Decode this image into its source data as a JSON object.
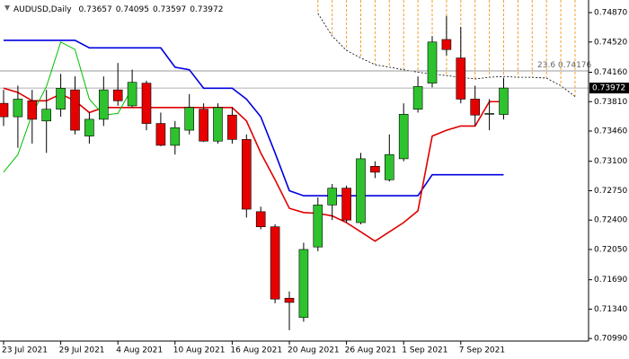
{
  "chart_data": {
    "type": "candlestick",
    "title": "AUDUSD,Daily",
    "categories": [
      "23 Jul 2021",
      null,
      null,
      null,
      "29 Jul 2021",
      null,
      null,
      null,
      "4 Aug 2021",
      null,
      null,
      null,
      "10 Aug 2021",
      null,
      null,
      null,
      "16 Aug 2021",
      null,
      null,
      null,
      "20 Aug 2021",
      null,
      null,
      null,
      "26 Aug 2021",
      null,
      null,
      null,
      "1 Sep 2021",
      null,
      null,
      null,
      "7 Sep 2021",
      null,
      null,
      null,
      null,
      null,
      null,
      null,
      null
    ],
    "open": [
      0.7379,
      0.7363,
      0.7382,
      0.7358,
      0.7372,
      0.7395,
      0.734,
      0.736,
      0.7395,
      0.7376,
      0.7403,
      0.7355,
      0.7329,
      0.7347,
      0.7372,
      0.7334,
      0.7365,
      0.7336,
      0.725,
      0.7232,
      0.7147,
      0.7124,
      0.7208,
      0.7258,
      0.7278,
      0.7237,
      0.7304,
      0.7288,
      0.7313,
      0.7372,
      0.7403,
      0.7455,
      0.7433,
      0.7384,
      0.7366,
      0.73657,
      null,
      null,
      null,
      null,
      null
    ],
    "high": [
      0.7395,
      0.74,
      0.7395,
      0.7395,
      0.7414,
      0.7411,
      0.7368,
      0.7411,
      0.7427,
      0.7419,
      0.7406,
      0.7368,
      0.7358,
      0.739,
      0.7379,
      0.7379,
      0.7374,
      0.7342,
      0.7256,
      0.7235,
      0.7155,
      0.7213,
      0.7267,
      0.7283,
      0.7281,
      0.732,
      0.731,
      0.7342,
      0.7379,
      0.7411,
      0.7459,
      0.7483,
      0.747,
      0.74,
      0.7384,
      0.74095,
      null,
      null,
      null,
      null,
      null
    ],
    "low": [
      0.7352,
      0.7326,
      0.7331,
      0.732,
      0.7363,
      0.7342,
      0.7331,
      0.7352,
      0.7376,
      0.7374,
      0.7347,
      0.7328,
      0.7318,
      0.7342,
      0.7333,
      0.7331,
      0.7331,
      0.7243,
      0.7229,
      0.7141,
      0.7109,
      0.7119,
      0.7203,
      0.724,
      0.7237,
      0.7235,
      0.729,
      0.7286,
      0.731,
      0.7368,
      0.7398,
      0.7436,
      0.7379,
      0.7352,
      0.7347,
      0.73597,
      null,
      null,
      null,
      null,
      null
    ],
    "close": [
      0.7363,
      0.7384,
      0.736,
      0.7372,
      0.7397,
      0.7347,
      0.736,
      0.7395,
      0.7382,
      0.7404,
      0.7355,
      0.7329,
      0.735,
      0.7374,
      0.7334,
      0.7374,
      0.7336,
      0.7253,
      0.7232,
      0.7146,
      0.7142,
      0.7205,
      0.7258,
      0.7278,
      0.724,
      0.7313,
      0.7297,
      0.7318,
      0.7366,
      0.7399,
      0.7452,
      0.7443,
      0.7384,
      0.7365,
      0.7367,
      0.73972,
      null,
      null,
      null,
      null,
      null
    ],
    "up_color": "#2ec32e",
    "down_color": "#e60000",
    "series": [
      {
        "color": "#0000e0",
        "width": 1.6,
        "values": [
          0.7454,
          0.7454,
          0.7454,
          0.7454,
          0.7454,
          0.7454,
          0.7445,
          0.7445,
          0.7445,
          0.7445,
          0.7445,
          0.7445,
          0.7422,
          0.7419,
          0.7397,
          0.7397,
          0.7397,
          0.7384,
          0.7363,
          0.732,
          0.7275,
          0.7269,
          0.7269,
          0.7269,
          0.7269,
          0.7269,
          0.7269,
          0.7269,
          0.7269,
          0.7269,
          0.7294,
          0.7294,
          0.7294,
          0.7294,
          0.7294,
          0.7294,
          null,
          null,
          null,
          null,
          null
        ]
      },
      {
        "color": "#e00000",
        "width": 1.6,
        "values": [
          0.7397,
          0.7392,
          0.7382,
          0.7382,
          0.739,
          0.7382,
          0.7368,
          0.7374,
          0.7374,
          0.7374,
          0.7374,
          0.7374,
          0.7374,
          0.7374,
          0.7374,
          0.7374,
          0.7374,
          0.7358,
          0.732,
          0.7288,
          0.7254,
          0.7249,
          0.7248,
          0.7245,
          0.7237,
          0.7226,
          0.7215,
          0.7226,
          0.7237,
          0.7251,
          0.734,
          0.7347,
          0.7352,
          0.7352,
          0.7381,
          0.7381,
          null,
          null,
          null,
          null,
          null
        ]
      },
      {
        "color": "#00c000",
        "width": 1,
        "values": [
          0.7297,
          0.7318,
          0.7366,
          0.7399,
          0.7452,
          0.7443,
          0.7384,
          0.7365,
          0.7367,
          0.7397,
          null,
          null,
          null,
          null,
          null,
          null,
          null,
          null,
          null,
          null,
          null,
          null,
          null,
          null,
          null,
          null,
          null,
          null,
          null,
          null,
          null,
          null,
          null,
          null,
          null,
          null,
          null,
          null,
          null,
          null,
          null
        ]
      }
    ],
    "cloud": {
      "color": "#f0a030",
      "edge_color": "#000000",
      "values": [
        null,
        null,
        null,
        null,
        null,
        null,
        null,
        null,
        null,
        null,
        null,
        null,
        null,
        null,
        null,
        null,
        null,
        null,
        null,
        null,
        null,
        null,
        0.7486,
        0.7459,
        0.7442,
        0.7433,
        0.7425,
        0.7422,
        0.7419,
        0.7416,
        0.7414,
        0.7412,
        0.741,
        0.7408,
        0.741,
        0.7411,
        0.741,
        0.741,
        0.7409,
        0.74,
        0.7387
      ]
    },
    "fib_level": {
      "label": "23.6",
      "value": 0.74176
    },
    "ylim": [
      0.7096,
      0.7502
    ],
    "yticks": [
      {
        "value": 0.7487,
        "label": "0.74870"
      },
      {
        "value": 0.7452,
        "label": "0.74520"
      },
      {
        "value": 0.7416,
        "label": "0.74160"
      },
      {
        "value": 0.7381,
        "label": "0.73810"
      },
      {
        "value": 0.7346,
        "label": "0.73460"
      },
      {
        "value": 0.731,
        "label": "0.73100"
      },
      {
        "value": 0.7275,
        "label": "0.72750"
      },
      {
        "value": 0.724,
        "label": "0.72400"
      },
      {
        "value": 0.7205,
        "label": "0.72050"
      },
      {
        "value": 0.7169,
        "label": "0.71690"
      },
      {
        "value": 0.7134,
        "label": "0.71340"
      },
      {
        "value": 0.7099,
        "label": "0.70990"
      }
    ]
  }
}
